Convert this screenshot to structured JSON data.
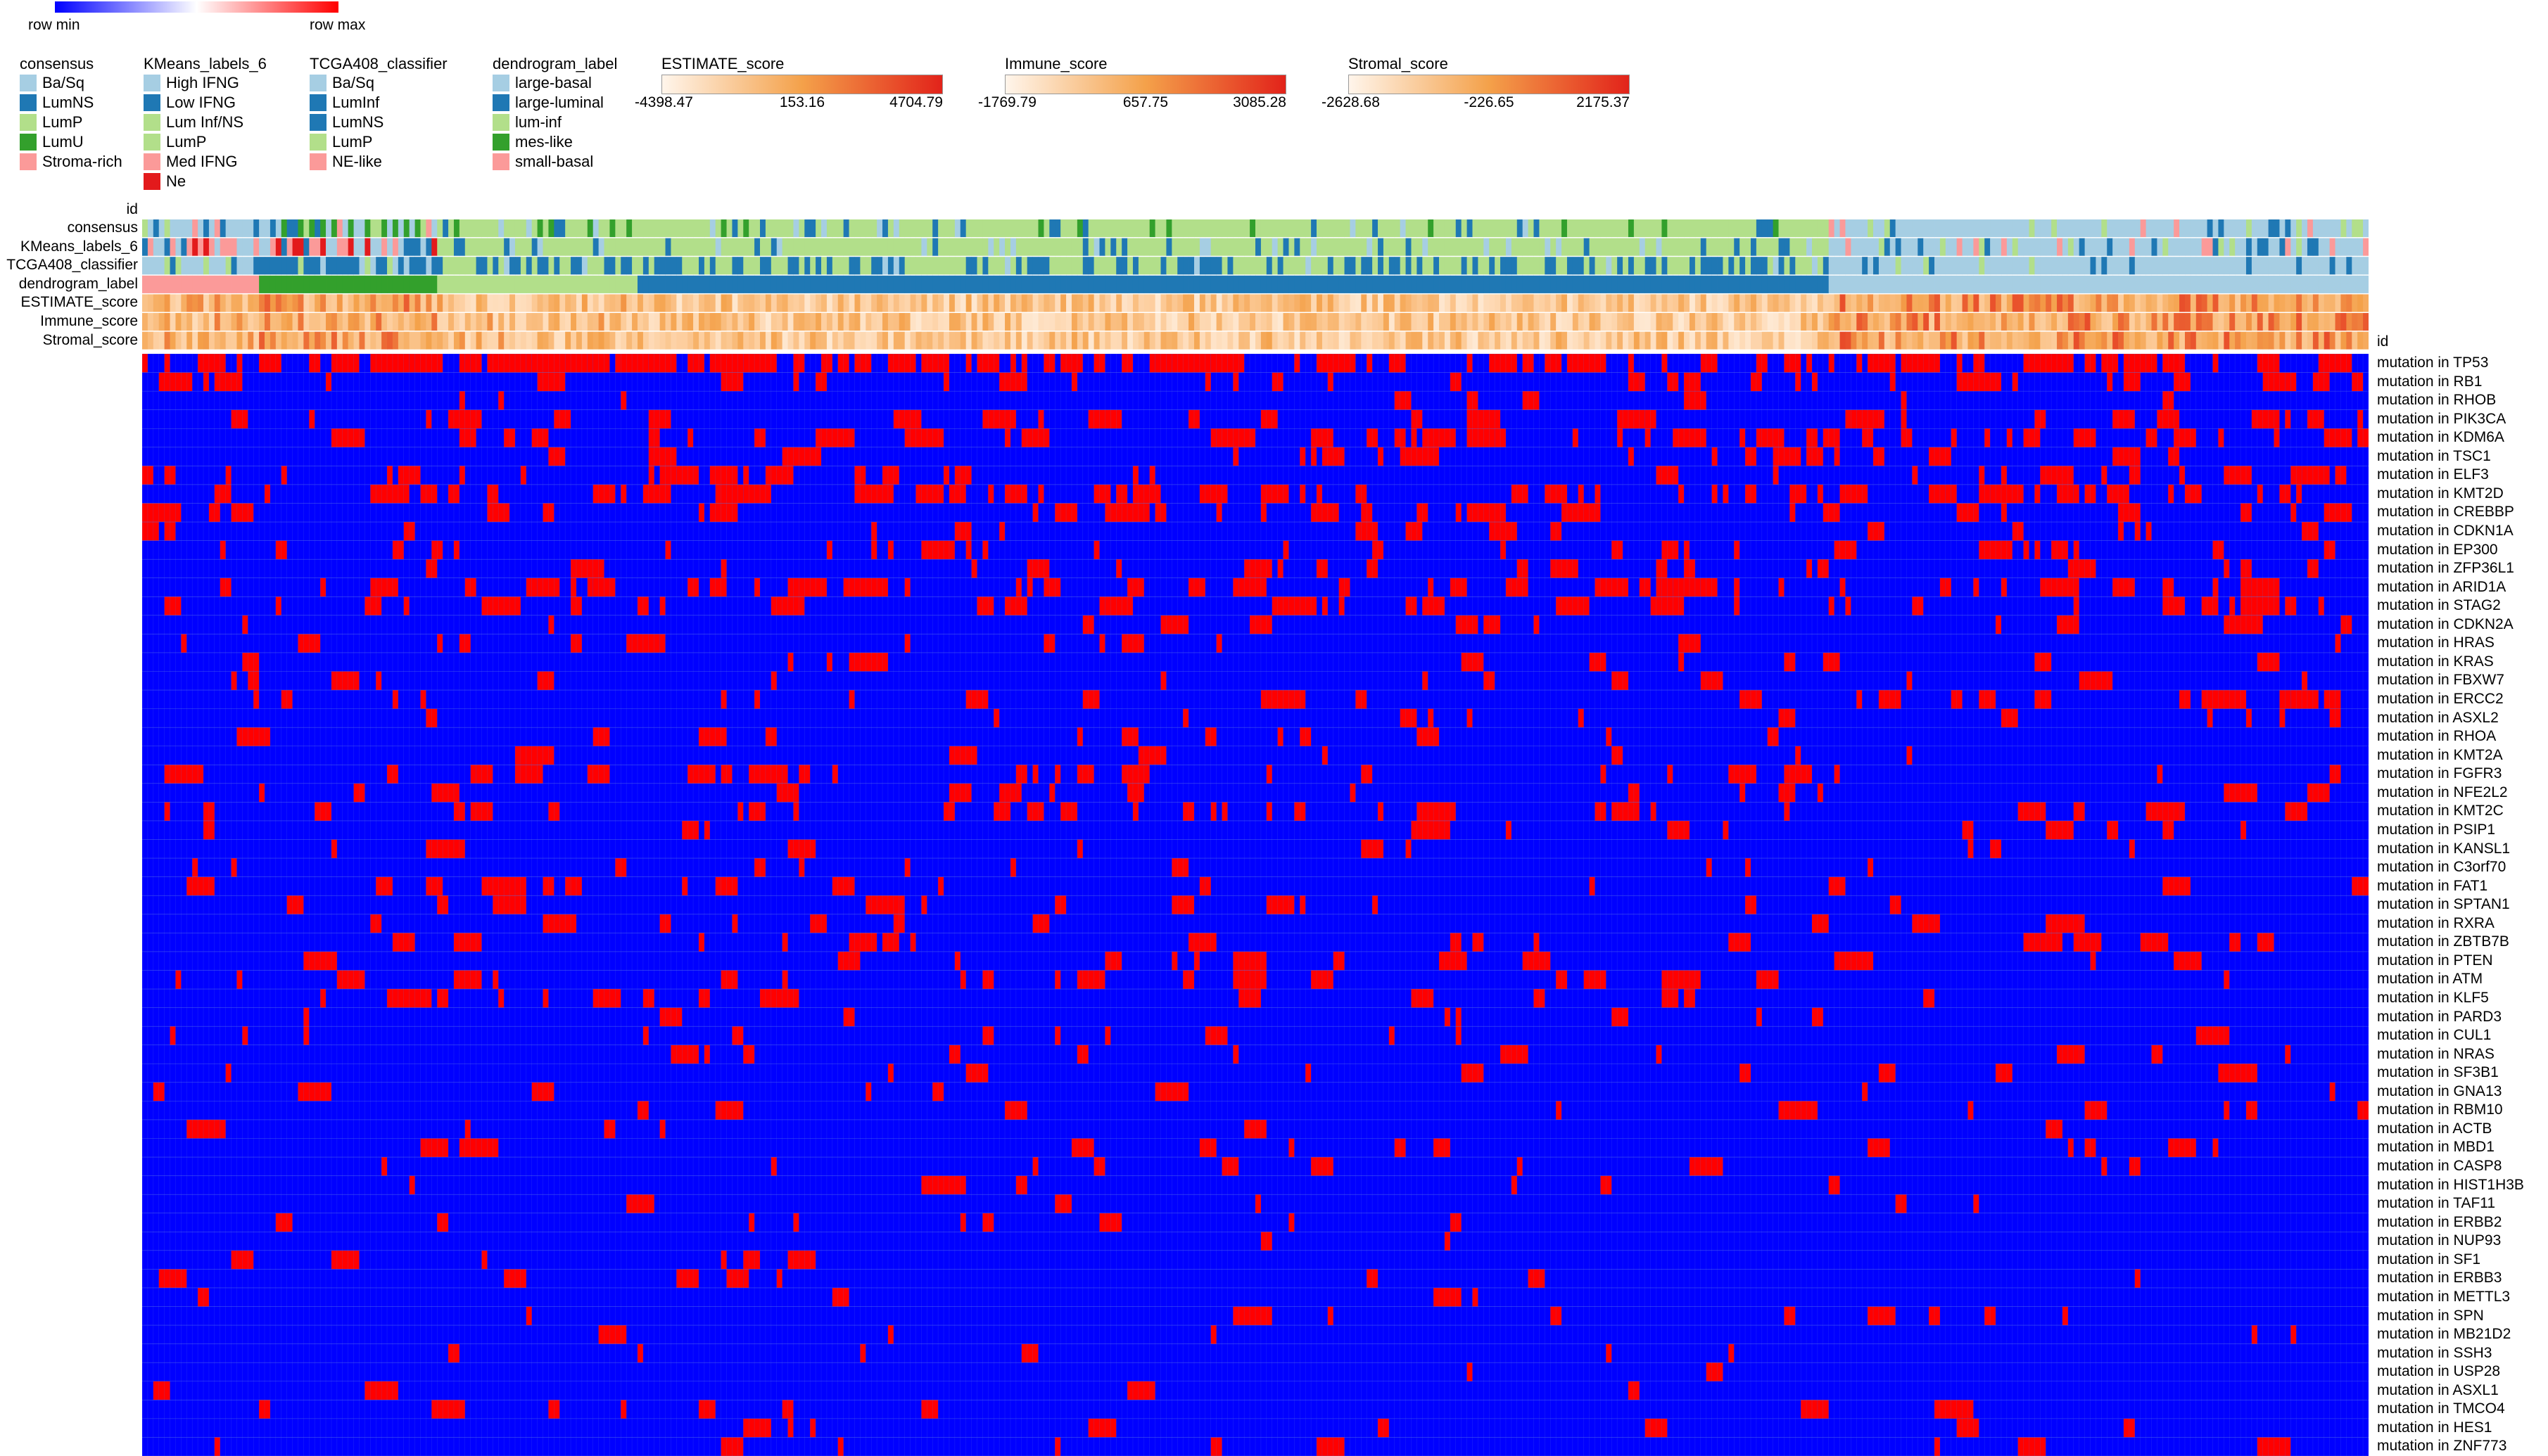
{
  "colors": {
    "row_min": "#0000ff",
    "row_max": "#ff0000",
    "grid": "#5a78e6",
    "Ba/Sq": "#a6cee3",
    "LumNS": "#1f78b4",
    "LumP": "#b2df8a",
    "LumU": "#33a02c",
    "Stroma-rich": "#fb9a99",
    "Ne": "#e31a1c",
    "score_low": "#fff5eb",
    "score_mid": "#f4a14a",
    "score_high": "#e2231a"
  },
  "color_scale": {
    "min_label": "row min",
    "max_label": "row max"
  },
  "legends": [
    {
      "title": "consensus",
      "items": [
        {
          "label": "Ba/Sq",
          "color": "#a6cee3"
        },
        {
          "label": "LumNS",
          "color": "#1f78b4"
        },
        {
          "label": "LumP",
          "color": "#b2df8a"
        },
        {
          "label": "LumU",
          "color": "#33a02c"
        },
        {
          "label": "Stroma-rich",
          "color": "#fb9a99"
        }
      ]
    },
    {
      "title": "KMeans_labels_6",
      "items": [
        {
          "label": "High IFNG",
          "color": "#a6cee3"
        },
        {
          "label": "Low IFNG",
          "color": "#1f78b4"
        },
        {
          "label": "Lum Inf/NS",
          "color": "#b2df8a"
        },
        {
          "label": "LumP",
          "color": "#b2df8a"
        },
        {
          "label": "Med IFNG",
          "color": "#fb9a99"
        },
        {
          "label": "Ne",
          "color": "#e31a1c"
        }
      ]
    },
    {
      "title": "TCGA408_classifier",
      "items": [
        {
          "label": "Ba/Sq",
          "color": "#a6cee3"
        },
        {
          "label": "LumInf",
          "color": "#1f78b4"
        },
        {
          "label": "LumNS",
          "color": "#1f78b4"
        },
        {
          "label": "LumP",
          "color": "#b2df8a"
        },
        {
          "label": "NE-like",
          "color": "#fb9a99"
        }
      ]
    },
    {
      "title": "dendrogram_label",
      "items": [
        {
          "label": "large-basal",
          "color": "#a6cee3"
        },
        {
          "label": "large-luminal",
          "color": "#1f78b4"
        },
        {
          "label": "lum-inf",
          "color": "#b2df8a"
        },
        {
          "label": "mes-like",
          "color": "#33a02c"
        },
        {
          "label": "small-basal",
          "color": "#fb9a99"
        }
      ]
    }
  ],
  "score_legends": [
    {
      "title": "ESTIMATE_score",
      "min": "-4398.47",
      "mid": "153.16",
      "max": "4704.79"
    },
    {
      "title": "Immune_score",
      "min": "-1769.79",
      "mid": "657.75",
      "max": "3085.28"
    },
    {
      "title": "Stromal_score",
      "min": "-2628.68",
      "mid": "-226.65",
      "max": "2175.37"
    }
  ],
  "annotation_label_id": "id",
  "annotation_rows": [
    "consensus",
    "KMeans_labels_6",
    "TCGA408_classifier",
    "dendrogram_label",
    "ESTIMATE_score",
    "Immune_score",
    "Stromal_score"
  ],
  "heatmap_label_id": "id",
  "chart_data": {
    "type": "heatmap",
    "title": "",
    "xlabel": "id",
    "n_samples": 400,
    "value_encoding": "1 = mutated (row max, red), 0 = not mutated (row min, blue)",
    "rows": [
      "mutation in TP53",
      "mutation in RB1",
      "mutation in RHOB",
      "mutation in PIK3CA",
      "mutation in KDM6A",
      "mutation in TSC1",
      "mutation in ELF3",
      "mutation in KMT2D",
      "mutation in CREBBP",
      "mutation in CDKN1A",
      "mutation in EP300",
      "mutation in ZFP36L1",
      "mutation in ARID1A",
      "mutation in STAG2",
      "mutation in CDKN2A",
      "mutation in HRAS",
      "mutation in KRAS",
      "mutation in FBXW7",
      "mutation in ERCC2",
      "mutation in ASXL2",
      "mutation in RHOA",
      "mutation in KMT2A",
      "mutation in FGFR3",
      "mutation in NFE2L2",
      "mutation in KMT2C",
      "mutation in PSIP1",
      "mutation in KANSL1",
      "mutation in C3orf70",
      "mutation in FAT1",
      "mutation in SPTAN1",
      "mutation in RXRA",
      "mutation in ZBTB7B",
      "mutation in PTEN",
      "mutation in ATM",
      "mutation in KLF5",
      "mutation in PARD3",
      "mutation in CUL1",
      "mutation in NRAS",
      "mutation in SF3B1",
      "mutation in GNA13",
      "mutation in RBM10",
      "mutation in ACTB",
      "mutation in MBD1",
      "mutation in CASP8",
      "mutation in HIST1H3B",
      "mutation in TAF11",
      "mutation in ERBB2",
      "mutation in NUP93",
      "mutation in SF1",
      "mutation in ERBB3",
      "mutation in METTL3",
      "mutation in SPN",
      "mutation in MB21D2",
      "mutation in SSH3",
      "mutation in USP28",
      "mutation in ASXL1",
      "mutation in TMCO4",
      "mutation in HES1",
      "mutation in ZNF773"
    ],
    "row_mutation_frequency": [
      0.47,
      0.14,
      0.06,
      0.21,
      0.24,
      0.1,
      0.12,
      0.25,
      0.11,
      0.09,
      0.13,
      0.09,
      0.23,
      0.12,
      0.07,
      0.05,
      0.04,
      0.05,
      0.07,
      0.06,
      0.07,
      0.06,
      0.14,
      0.08,
      0.16,
      0.05,
      0.06,
      0.05,
      0.1,
      0.08,
      0.05,
      0.05,
      0.05,
      0.08,
      0.05,
      0.04,
      0.04,
      0.03,
      0.04,
      0.04,
      0.04,
      0.03,
      0.03,
      0.04,
      0.03,
      0.03,
      0.05,
      0.03,
      0.03,
      0.05,
      0.03,
      0.03,
      0.04,
      0.03,
      0.03,
      0.03,
      0.03,
      0.03,
      0.03
    ],
    "dendrogram_blocks": [
      {
        "label": "small-basal",
        "start": 0,
        "end": 0.052
      },
      {
        "label": "mes-like",
        "start": 0.052,
        "end": 0.132
      },
      {
        "label": "lum-inf",
        "start": 0.132,
        "end": 0.223
      },
      {
        "label": "large-luminal",
        "start": 0.223,
        "end": 0.757
      },
      {
        "label": "large-basal",
        "start": 0.757,
        "end": 1.0
      }
    ],
    "color_scale": {
      "min": "row min",
      "max": "row max"
    }
  }
}
